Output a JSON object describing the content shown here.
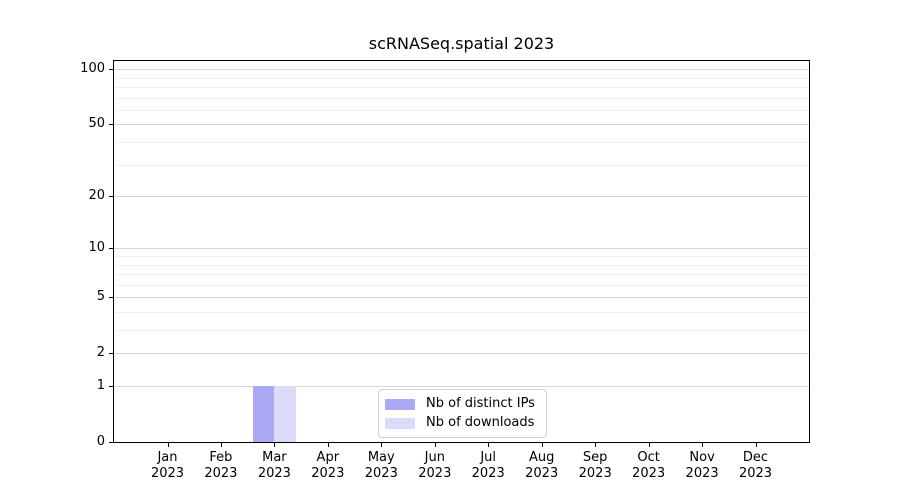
{
  "chart_data": {
    "type": "bar",
    "title": "scRNASeq.spatial 2023",
    "categories": [
      "Jan",
      "Feb",
      "Mar",
      "Apr",
      "May",
      "Jun",
      "Jul",
      "Aug",
      "Sep",
      "Oct",
      "Nov",
      "Dec"
    ],
    "year_label": "2023",
    "series": [
      {
        "name": "Nb of distinct IPs",
        "color": "#a9a9f4",
        "values": [
          0,
          0,
          1,
          0,
          0,
          0,
          0,
          0,
          0,
          0,
          0,
          0
        ]
      },
      {
        "name": "Nb of downloads",
        "color": "#dbdcf9",
        "values": [
          0,
          0,
          1,
          0,
          0,
          0,
          0,
          0,
          0,
          0,
          0,
          0
        ]
      }
    ],
    "y_axis": {
      "scale": "log1p",
      "ticks": [
        0,
        1,
        2,
        5,
        10,
        20,
        50,
        100
      ],
      "minor_ticks": [
        3,
        4,
        6,
        7,
        8,
        9,
        30,
        40,
        60,
        70,
        80,
        90
      ],
      "ylim": [
        0,
        113
      ]
    },
    "grid": "horizontal",
    "legend": {
      "position": "lower center"
    }
  }
}
